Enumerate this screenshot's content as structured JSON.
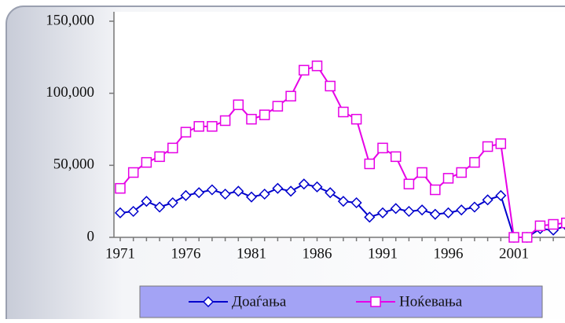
{
  "chart_data": {
    "type": "line",
    "categories": [
      "1971",
      null,
      null,
      null,
      null,
      "1976",
      null,
      null,
      null,
      null,
      "1981",
      null,
      null,
      null,
      null,
      "1986",
      null,
      null,
      null,
      null,
      "1991",
      null,
      null,
      null,
      null,
      "1996",
      null,
      null,
      null,
      null,
      "2001",
      null,
      null,
      null,
      null
    ],
    "series": [
      {
        "name": "Доаѓања",
        "color": "#0000cc",
        "marker": "diamond",
        "values": [
          17000,
          18000,
          25000,
          21000,
          24000,
          29000,
          31000,
          33000,
          30000,
          32000,
          28000,
          30000,
          34000,
          32000,
          37000,
          35000,
          31000,
          25000,
          24000,
          14000,
          17000,
          20000,
          18000,
          19000,
          16000,
          17000,
          19000,
          21000,
          26000,
          29000,
          0,
          0,
          6000,
          5000,
          8000
        ]
      },
      {
        "name": "Ноќевања",
        "color": "#e600e6",
        "marker": "square",
        "values": [
          34000,
          45000,
          52000,
          56000,
          62000,
          73000,
          77000,
          77000,
          81000,
          92000,
          82000,
          85000,
          91000,
          98000,
          116000,
          119000,
          105000,
          87000,
          82000,
          51000,
          62000,
          56000,
          37000,
          45000,
          33000,
          41000,
          45000,
          52000,
          63000,
          65000,
          0,
          0,
          8000,
          9000,
          10000
        ]
      }
    ],
    "ylim": [
      0,
      150000
    ],
    "yticks": [
      0,
      {
        "value": 50000,
        "label": "50,000"
      },
      {
        "value": 100000,
        "label": "100,000"
      },
      {
        "value": 150000,
        "label": "150,000"
      }
    ],
    "grid": false,
    "legend": "bottom"
  }
}
